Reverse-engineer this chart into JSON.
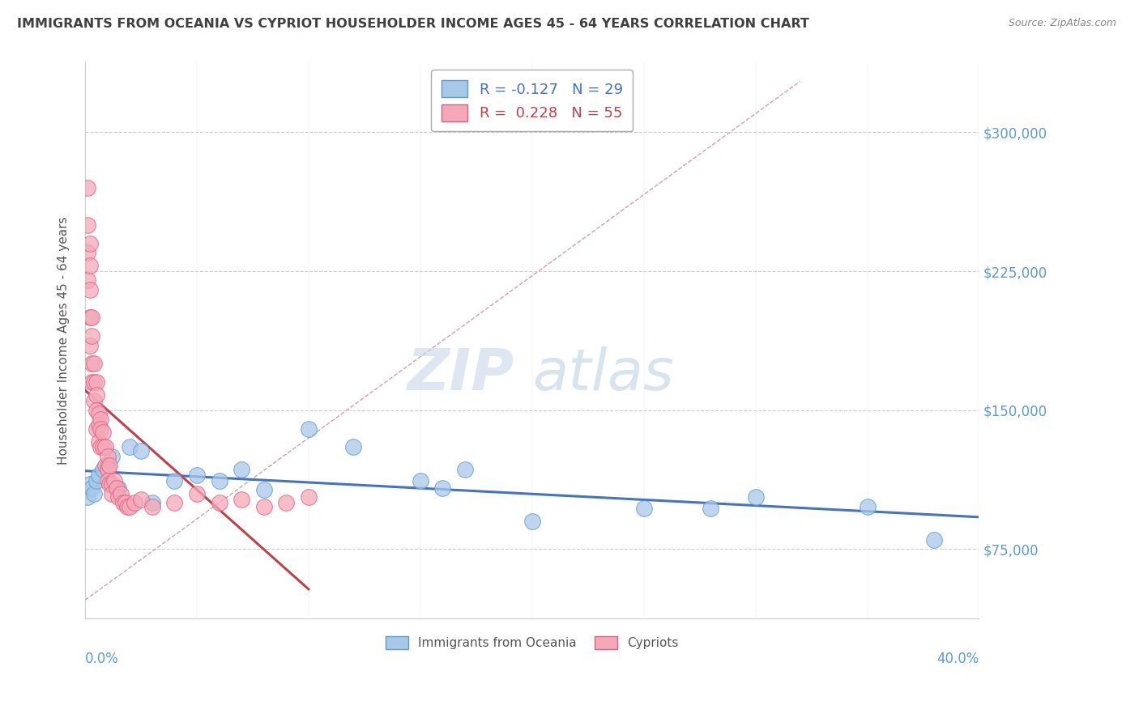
{
  "title": "IMMIGRANTS FROM OCEANIA VS CYPRIOT HOUSEHOLDER INCOME AGES 45 - 64 YEARS CORRELATION CHART",
  "source": "Source: ZipAtlas.com",
  "ylabel": "Householder Income Ages 45 - 64 years",
  "x_min": 0.0,
  "x_max": 0.4,
  "y_min": 37500,
  "y_max": 337500,
  "yticks": [
    75000,
    150000,
    225000,
    300000
  ],
  "ytick_labels": [
    "$75,000",
    "$150,000",
    "$225,000",
    "$300,000"
  ],
  "xtick_labels_edge": [
    "0.0%",
    "40.0%"
  ],
  "watermark_zip": "ZIP",
  "watermark_atlas": "atlas",
  "legend_blue_label": "Immigrants from Oceania",
  "legend_pink_label": "Cypriots",
  "R_blue": -0.127,
  "N_blue": 29,
  "R_pink": 0.228,
  "N_pink": 55,
  "blue_color": "#a8c8e8",
  "pink_color": "#f4a8b8",
  "blue_edge_color": "#5b9bd5",
  "pink_edge_color": "#e06080",
  "blue_line_color": "#4472c4",
  "pink_line_color": "#c0404a",
  "ref_line_color": "#d0a0a8",
  "title_color": "#404040",
  "tick_color": "#5b9bd5",
  "grid_color": "#cccccc",
  "blue_x": [
    0.001,
    0.002,
    0.003,
    0.004,
    0.005,
    0.006,
    0.008,
    0.01,
    0.012,
    0.015,
    0.02,
    0.025,
    0.03,
    0.04,
    0.05,
    0.06,
    0.07,
    0.08,
    0.1,
    0.12,
    0.15,
    0.16,
    0.17,
    0.2,
    0.25,
    0.28,
    0.3,
    0.35,
    0.38
  ],
  "blue_y": [
    103000,
    110000,
    108000,
    105000,
    112000,
    115000,
    118000,
    120000,
    125000,
    108000,
    130000,
    128000,
    100000,
    112000,
    115000,
    112000,
    118000,
    107000,
    140000,
    130000,
    112000,
    108000,
    118000,
    90000,
    97000,
    97000,
    103000,
    98000,
    80000
  ],
  "pink_x": [
    0.001,
    0.001,
    0.001,
    0.001,
    0.002,
    0.002,
    0.002,
    0.002,
    0.002,
    0.003,
    0.003,
    0.003,
    0.003,
    0.004,
    0.004,
    0.004,
    0.005,
    0.005,
    0.005,
    0.005,
    0.006,
    0.006,
    0.006,
    0.007,
    0.007,
    0.007,
    0.008,
    0.008,
    0.009,
    0.009,
    0.01,
    0.01,
    0.01,
    0.011,
    0.011,
    0.012,
    0.012,
    0.013,
    0.014,
    0.015,
    0.016,
    0.017,
    0.018,
    0.019,
    0.02,
    0.022,
    0.025,
    0.03,
    0.04,
    0.05,
    0.06,
    0.07,
    0.08,
    0.09,
    0.1
  ],
  "pink_y": [
    270000,
    250000,
    235000,
    220000,
    240000,
    228000,
    215000,
    200000,
    185000,
    200000,
    190000,
    175000,
    165000,
    175000,
    165000,
    155000,
    165000,
    158000,
    150000,
    140000,
    148000,
    142000,
    133000,
    145000,
    140000,
    130000,
    138000,
    130000,
    130000,
    120000,
    125000,
    118000,
    112000,
    120000,
    110000,
    110000,
    105000,
    112000,
    108000,
    103000,
    105000,
    100000,
    100000,
    98000,
    98000,
    100000,
    102000,
    98000,
    100000,
    105000,
    100000,
    102000,
    98000,
    100000,
    103000
  ]
}
